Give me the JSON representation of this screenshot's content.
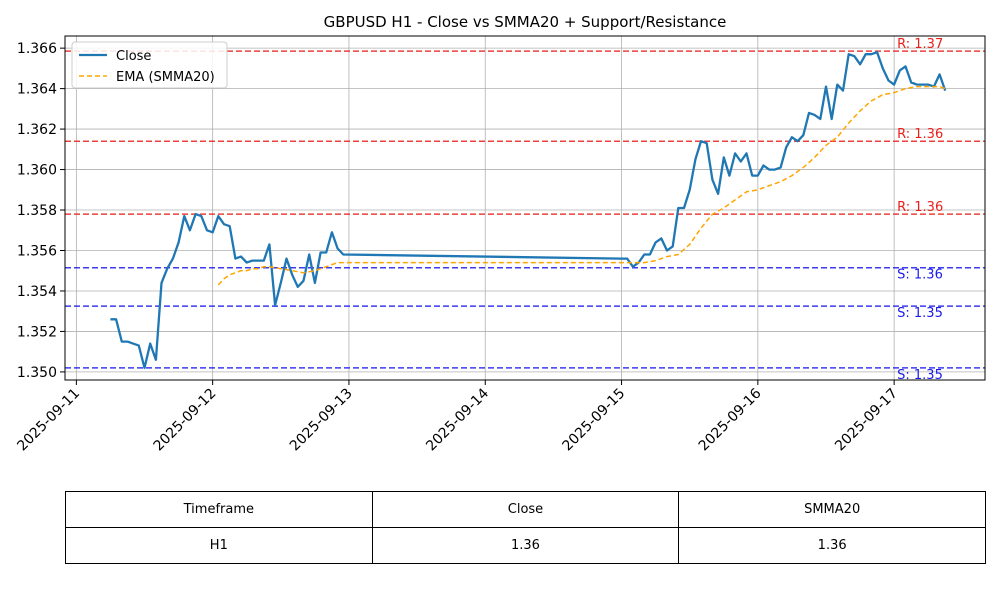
{
  "chart_data": {
    "type": "line",
    "title": "GBPUSD H1 - Close vs SMMA20 + Support/Resistance",
    "xlabel": "",
    "ylabel": "",
    "x_range": [
      "2025-09-10T22:00",
      "2025-09-17T16:00"
    ],
    "ylim": [
      1.3496,
      1.3666
    ],
    "x_ticks": [
      "2025-09-11",
      "2025-09-12",
      "2025-09-13",
      "2025-09-14",
      "2025-09-15",
      "2025-09-16",
      "2025-09-17"
    ],
    "y_ticks": [
      "1.350",
      "1.352",
      "1.354",
      "1.356",
      "1.358",
      "1.360",
      "1.362",
      "1.364",
      "1.366"
    ],
    "grid": true,
    "legend_position": "top-left",
    "series": [
      {
        "name": "Close",
        "color": "#1f77b4",
        "style": "solid",
        "points": [
          [
            "2025-09-11T06:00",
            1.3526
          ],
          [
            "2025-09-11T07:00",
            1.3526
          ],
          [
            "2025-09-11T08:00",
            1.3515
          ],
          [
            "2025-09-11T09:00",
            1.3515
          ],
          [
            "2025-09-11T10:00",
            1.3514
          ],
          [
            "2025-09-11T11:00",
            1.3513
          ],
          [
            "2025-09-11T12:00",
            1.3502
          ],
          [
            "2025-09-11T13:00",
            1.3514
          ],
          [
            "2025-09-11T14:00",
            1.3506
          ],
          [
            "2025-09-11T15:00",
            1.3544
          ],
          [
            "2025-09-11T16:00",
            1.3551
          ],
          [
            "2025-09-11T17:00",
            1.3556
          ],
          [
            "2025-09-11T18:00",
            1.3564
          ],
          [
            "2025-09-11T19:00",
            1.3577
          ],
          [
            "2025-09-11T20:00",
            1.357
          ],
          [
            "2025-09-11T21:00",
            1.3578
          ],
          [
            "2025-09-11T22:00",
            1.3577
          ],
          [
            "2025-09-11T23:00",
            1.357
          ],
          [
            "2025-09-12T00:00",
            1.3569
          ],
          [
            "2025-09-12T01:00",
            1.3577
          ],
          [
            "2025-09-12T02:00",
            1.3573
          ],
          [
            "2025-09-12T03:00",
            1.3572
          ],
          [
            "2025-09-12T04:00",
            1.3556
          ],
          [
            "2025-09-12T05:00",
            1.3557
          ],
          [
            "2025-09-12T06:00",
            1.3554
          ],
          [
            "2025-09-12T07:00",
            1.3555
          ],
          [
            "2025-09-12T08:00",
            1.3555
          ],
          [
            "2025-09-12T09:00",
            1.3555
          ],
          [
            "2025-09-12T10:00",
            1.3563
          ],
          [
            "2025-09-12T11:00",
            1.3533
          ],
          [
            "2025-09-12T12:00",
            1.3544
          ],
          [
            "2025-09-12T13:00",
            1.3556
          ],
          [
            "2025-09-12T14:00",
            1.3548
          ],
          [
            "2025-09-12T15:00",
            1.3542
          ],
          [
            "2025-09-12T16:00",
            1.3545
          ],
          [
            "2025-09-12T17:00",
            1.3558
          ],
          [
            "2025-09-12T18:00",
            1.3544
          ],
          [
            "2025-09-12T19:00",
            1.3559
          ],
          [
            "2025-09-12T20:00",
            1.3559
          ],
          [
            "2025-09-12T21:00",
            1.3569
          ],
          [
            "2025-09-12T22:00",
            1.3561
          ],
          [
            "2025-09-12T23:00",
            1.3558
          ],
          [
            "2025-09-15T00:00",
            1.3556
          ],
          [
            "2025-09-15T01:00",
            1.3556
          ],
          [
            "2025-09-15T02:00",
            1.3552
          ],
          [
            "2025-09-15T03:00",
            1.3554
          ],
          [
            "2025-09-15T04:00",
            1.3558
          ],
          [
            "2025-09-15T05:00",
            1.3558
          ],
          [
            "2025-09-15T06:00",
            1.3564
          ],
          [
            "2025-09-15T07:00",
            1.3566
          ],
          [
            "2025-09-15T08:00",
            1.356
          ],
          [
            "2025-09-15T09:00",
            1.3562
          ],
          [
            "2025-09-15T10:00",
            1.3581
          ],
          [
            "2025-09-15T11:00",
            1.3581
          ],
          [
            "2025-09-15T12:00",
            1.359
          ],
          [
            "2025-09-15T13:00",
            1.3605
          ],
          [
            "2025-09-15T14:00",
            1.3614
          ],
          [
            "2025-09-15T15:00",
            1.3613
          ],
          [
            "2025-09-15T16:00",
            1.3595
          ],
          [
            "2025-09-15T17:00",
            1.3588
          ],
          [
            "2025-09-15T18:00",
            1.3606
          ],
          [
            "2025-09-15T19:00",
            1.3597
          ],
          [
            "2025-09-15T20:00",
            1.3608
          ],
          [
            "2025-09-15T21:00",
            1.3604
          ],
          [
            "2025-09-15T22:00",
            1.3608
          ],
          [
            "2025-09-15T23:00",
            1.3597
          ],
          [
            "2025-09-16T00:00",
            1.3597
          ],
          [
            "2025-09-16T01:00",
            1.3602
          ],
          [
            "2025-09-16T02:00",
            1.36
          ],
          [
            "2025-09-16T03:00",
            1.36
          ],
          [
            "2025-09-16T04:00",
            1.3601
          ],
          [
            "2025-09-16T05:00",
            1.3611
          ],
          [
            "2025-09-16T06:00",
            1.3616
          ],
          [
            "2025-09-16T07:00",
            1.3614
          ],
          [
            "2025-09-16T08:00",
            1.3617
          ],
          [
            "2025-09-16T09:00",
            1.3628
          ],
          [
            "2025-09-16T10:00",
            1.3627
          ],
          [
            "2025-09-16T11:00",
            1.3625
          ],
          [
            "2025-09-16T12:00",
            1.3641
          ],
          [
            "2025-09-16T13:00",
            1.3625
          ],
          [
            "2025-09-16T14:00",
            1.3642
          ],
          [
            "2025-09-16T15:00",
            1.3639
          ],
          [
            "2025-09-16T16:00",
            1.3657
          ],
          [
            "2025-09-16T17:00",
            1.3656
          ],
          [
            "2025-09-16T18:00",
            1.3652
          ],
          [
            "2025-09-16T19:00",
            1.3657
          ],
          [
            "2025-09-16T20:00",
            1.3657
          ],
          [
            "2025-09-16T21:00",
            1.3658
          ],
          [
            "2025-09-16T22:00",
            1.365
          ],
          [
            "2025-09-16T23:00",
            1.3644
          ],
          [
            "2025-09-17T00:00",
            1.3642
          ],
          [
            "2025-09-17T01:00",
            1.3649
          ],
          [
            "2025-09-17T02:00",
            1.3651
          ],
          [
            "2025-09-17T03:00",
            1.3643
          ],
          [
            "2025-09-17T04:00",
            1.3642
          ],
          [
            "2025-09-17T05:00",
            1.3642
          ],
          [
            "2025-09-17T06:00",
            1.3642
          ],
          [
            "2025-09-17T07:00",
            1.3641
          ],
          [
            "2025-09-17T08:00",
            1.3647
          ],
          [
            "2025-09-17T09:00",
            1.3639
          ]
        ]
      },
      {
        "name": "EMA (SMMA20)",
        "color": "#ffa500",
        "style": "dashed",
        "points": [
          [
            "2025-09-12T01:00",
            1.3543
          ],
          [
            "2025-09-12T02:00",
            1.3546
          ],
          [
            "2025-09-12T03:00",
            1.3548
          ],
          [
            "2025-09-12T04:00",
            1.3549
          ],
          [
            "2025-09-12T05:00",
            1.355
          ],
          [
            "2025-09-12T06:00",
            1.355
          ],
          [
            "2025-09-12T07:00",
            1.3551
          ],
          [
            "2025-09-12T08:00",
            1.3551
          ],
          [
            "2025-09-12T09:00",
            1.3552
          ],
          [
            "2025-09-12T10:00",
            1.3552
          ],
          [
            "2025-09-12T12:00",
            1.3551
          ],
          [
            "2025-09-12T14:00",
            1.355
          ],
          [
            "2025-09-12T16:00",
            1.3549
          ],
          [
            "2025-09-12T18:00",
            1.355
          ],
          [
            "2025-09-12T20:00",
            1.3552
          ],
          [
            "2025-09-12T22:00",
            1.3554
          ],
          [
            "2025-09-12T23:00",
            1.3554
          ],
          [
            "2025-09-15T00:00",
            1.3554
          ],
          [
            "2025-09-15T02:00",
            1.3554
          ],
          [
            "2025-09-15T04:00",
            1.3554
          ],
          [
            "2025-09-15T06:00",
            1.3555
          ],
          [
            "2025-09-15T08:00",
            1.3557
          ],
          [
            "2025-09-15T10:00",
            1.3558
          ],
          [
            "2025-09-15T12:00",
            1.3563
          ],
          [
            "2025-09-15T14:00",
            1.3571
          ],
          [
            "2025-09-15T16:00",
            1.3578
          ],
          [
            "2025-09-15T18:00",
            1.3581
          ],
          [
            "2025-09-15T20:00",
            1.3585
          ],
          [
            "2025-09-15T22:00",
            1.3589
          ],
          [
            "2025-09-16T00:00",
            1.359
          ],
          [
            "2025-09-16T02:00",
            1.3592
          ],
          [
            "2025-09-16T04:00",
            1.3594
          ],
          [
            "2025-09-16T06:00",
            1.3597
          ],
          [
            "2025-09-16T08:00",
            1.3601
          ],
          [
            "2025-09-16T10:00",
            1.3606
          ],
          [
            "2025-09-16T12:00",
            1.3612
          ],
          [
            "2025-09-16T14:00",
            1.3616
          ],
          [
            "2025-09-16T16:00",
            1.3623
          ],
          [
            "2025-09-16T18:00",
            1.3629
          ],
          [
            "2025-09-16T20:00",
            1.3634
          ],
          [
            "2025-09-16T22:00",
            1.3637
          ],
          [
            "2025-09-17T00:00",
            1.3638
          ],
          [
            "2025-09-17T02:00",
            1.364
          ],
          [
            "2025-09-17T04:00",
            1.3641
          ],
          [
            "2025-09-17T06:00",
            1.3641
          ],
          [
            "2025-09-17T08:00",
            1.3641
          ],
          [
            "2025-09-17T09:00",
            1.364
          ]
        ]
      }
    ],
    "levels": [
      {
        "kind": "resistance",
        "value": 1.36585,
        "label": "R: 1.37",
        "color": "#e8201c"
      },
      {
        "kind": "resistance",
        "value": 1.3614,
        "label": "R: 1.36",
        "color": "#e8201c"
      },
      {
        "kind": "resistance",
        "value": 1.3578,
        "label": "R: 1.36",
        "color": "#e8201c"
      },
      {
        "kind": "support",
        "value": 1.35515,
        "label": "S: 1.36",
        "color": "#1a1aee"
      },
      {
        "kind": "support",
        "value": 1.35325,
        "label": "S: 1.35",
        "color": "#1a1aee"
      },
      {
        "kind": "support",
        "value": 1.3502,
        "label": "S: 1.35",
        "color": "#1a1aee"
      }
    ]
  },
  "table": {
    "headers": [
      "Timeframe",
      "Close",
      "SMMA20"
    ],
    "rows": [
      [
        "H1",
        "1.36",
        "1.36"
      ]
    ]
  }
}
